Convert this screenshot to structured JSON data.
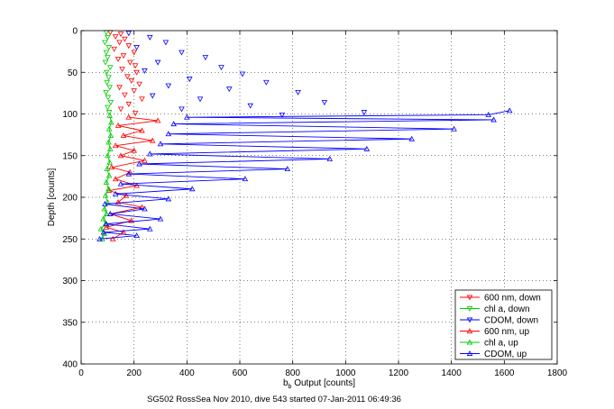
{
  "chart_data": {
    "type": "scatter",
    "xlabel_main": "b",
    "xlabel_sub": "b",
    "xlabel_rest": " Output [counts]",
    "ylabel": "Depth [counts]",
    "caption": "SG502 RossSea Nov 2010, dive 543 started 07-Jan-2011 06:49:36",
    "xlim": [
      0,
      1800
    ],
    "ylim": [
      0,
      400
    ],
    "y_reversed": true,
    "grid": true,
    "legend_position": "bottom-right",
    "xticks": [
      0,
      200,
      400,
      600,
      800,
      1000,
      1200,
      1400,
      1600,
      1800
    ],
    "yticks": [
      0,
      50,
      100,
      150,
      200,
      250,
      300,
      350,
      400
    ],
    "series": [
      {
        "name": "600 nm, down",
        "color": "#ff0000",
        "marker": "triangle-down",
        "line": false,
        "points": [
          [
            110,
            2
          ],
          [
            150,
            4
          ],
          [
            130,
            7
          ],
          [
            165,
            10
          ],
          [
            145,
            14
          ],
          [
            180,
            18
          ],
          [
            125,
            22
          ],
          [
            200,
            26
          ],
          [
            160,
            30
          ],
          [
            140,
            34
          ],
          [
            185,
            38
          ],
          [
            205,
            42
          ],
          [
            155,
            46
          ],
          [
            210,
            50
          ],
          [
            175,
            55
          ],
          [
            190,
            60
          ],
          [
            220,
            64
          ],
          [
            145,
            68
          ],
          [
            200,
            72
          ],
          [
            165,
            77
          ],
          [
            230,
            82
          ],
          [
            180,
            88
          ],
          [
            150,
            94
          ],
          [
            205,
            99
          ]
        ]
      },
      {
        "name": "chl a, down",
        "color": "#00cc00",
        "marker": "triangle-down",
        "line": false,
        "points": [
          [
            95,
            2
          ],
          [
            100,
            8
          ],
          [
            90,
            14
          ],
          [
            105,
            20
          ],
          [
            95,
            26
          ],
          [
            100,
            32
          ],
          [
            92,
            38
          ],
          [
            110,
            44
          ],
          [
            96,
            50
          ],
          [
            104,
            56
          ],
          [
            98,
            62
          ],
          [
            108,
            68
          ],
          [
            94,
            74
          ],
          [
            102,
            80
          ],
          [
            112,
            86
          ],
          [
            100,
            92
          ],
          [
            106,
            98
          ]
        ]
      },
      {
        "name": "CDOM, down",
        "color": "#0000ff",
        "marker": "triangle-down",
        "line": false,
        "points": [
          [
            180,
            3
          ],
          [
            260,
            8
          ],
          [
            320,
            14
          ],
          [
            210,
            20
          ],
          [
            380,
            26
          ],
          [
            470,
            32
          ],
          [
            290,
            38
          ],
          [
            530,
            44
          ],
          [
            240,
            48
          ],
          [
            610,
            52
          ],
          [
            410,
            58
          ],
          [
            700,
            62
          ],
          [
            330,
            66
          ],
          [
            560,
            70
          ],
          [
            820,
            74
          ],
          [
            270,
            78
          ],
          [
            450,
            82
          ],
          [
            920,
            86
          ],
          [
            640,
            90
          ],
          [
            380,
            94
          ],
          [
            1070,
            98
          ],
          [
            760,
            101
          ]
        ]
      },
      {
        "name": "600 nm, up",
        "color": "#ff0000",
        "marker": "triangle-up",
        "line": true,
        "points": [
          [
            120,
            250
          ],
          [
            160,
            242
          ],
          [
            95,
            236
          ],
          [
            190,
            228
          ],
          [
            110,
            220
          ],
          [
            230,
            212
          ],
          [
            140,
            206
          ],
          [
            170,
            198
          ],
          [
            105,
            192
          ],
          [
            210,
            186
          ],
          [
            130,
            178
          ],
          [
            185,
            170
          ],
          [
            115,
            164
          ],
          [
            240,
            156
          ],
          [
            150,
            150
          ],
          [
            200,
            144
          ],
          [
            130,
            138
          ],
          [
            270,
            132
          ],
          [
            160,
            126
          ],
          [
            230,
            120
          ],
          [
            140,
            114
          ],
          [
            290,
            108
          ],
          [
            180,
            104
          ]
        ]
      },
      {
        "name": "chl a, up",
        "color": "#00cc00",
        "marker": "triangle-up",
        "line": true,
        "points": [
          [
            80,
            250
          ],
          [
            88,
            244
          ],
          [
            75,
            238
          ],
          [
            92,
            232
          ],
          [
            84,
            226
          ],
          [
            96,
            220
          ],
          [
            88,
            214
          ],
          [
            100,
            206
          ],
          [
            92,
            198
          ],
          [
            104,
            190
          ],
          [
            95,
            182
          ],
          [
            106,
            174
          ],
          [
            98,
            166
          ],
          [
            108,
            158
          ],
          [
            100,
            150
          ],
          [
            110,
            142
          ],
          [
            104,
            134
          ],
          [
            112,
            126
          ],
          [
            106,
            118
          ],
          [
            114,
            110
          ],
          [
            108,
            102
          ]
        ]
      },
      {
        "name": "CDOM, up",
        "color": "#0000ff",
        "marker": "triangle-up",
        "line": true,
        "points": [
          [
            70,
            250
          ],
          [
            210,
            246
          ],
          [
            85,
            242
          ],
          [
            260,
            238
          ],
          [
            95,
            232
          ],
          [
            300,
            226
          ],
          [
            110,
            220
          ],
          [
            240,
            214
          ],
          [
            90,
            208
          ],
          [
            330,
            202
          ],
          [
            130,
            196
          ],
          [
            420,
            190
          ],
          [
            150,
            184
          ],
          [
            620,
            178
          ],
          [
            180,
            172
          ],
          [
            780,
            166
          ],
          [
            220,
            160
          ],
          [
            940,
            154
          ],
          [
            260,
            148
          ],
          [
            1080,
            142
          ],
          [
            300,
            136
          ],
          [
            1250,
            130
          ],
          [
            330,
            124
          ],
          [
            1410,
            118
          ],
          [
            350,
            112
          ],
          [
            1560,
            107
          ],
          [
            400,
            104
          ],
          [
            1540,
            101
          ],
          [
            1620,
            96
          ]
        ]
      }
    ]
  }
}
